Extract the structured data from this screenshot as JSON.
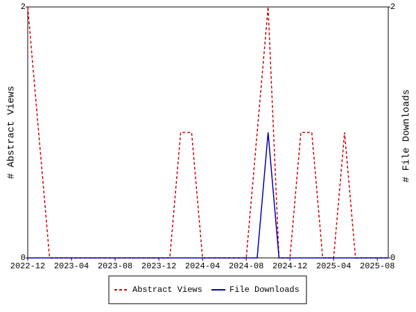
{
  "chart_data": {
    "type": "line",
    "y_label": "# Abstract Views",
    "y2_label": "# File Downloads",
    "categories": [
      "2022-12",
      null,
      null,
      null,
      "2023-04",
      null,
      null,
      null,
      "2023-08",
      null,
      null,
      null,
      "2023-12",
      null,
      null,
      null,
      "2024-04",
      null,
      null,
      null,
      "2024-08",
      null,
      null,
      null,
      "2024-12",
      null,
      null,
      null,
      "2025-04",
      null,
      null,
      null,
      "2025-08",
      null
    ],
    "series": [
      {
        "name": "Abstract Views",
        "color": "#cc0000",
        "dashed": true,
        "values": [
          2,
          1,
          0,
          0,
          0,
          0,
          0,
          0,
          0,
          0,
          0,
          0,
          0,
          0,
          1,
          1,
          0,
          0,
          0,
          0,
          0,
          1,
          2,
          0,
          0,
          1,
          1,
          0,
          0,
          1,
          0,
          0,
          0,
          0
        ]
      },
      {
        "name": "File Downloads",
        "color": "#0000aa",
        "dashed": false,
        "axis": "y2",
        "values": [
          0,
          0,
          0,
          0,
          0,
          0,
          0,
          0,
          0,
          0,
          0,
          0,
          0,
          0,
          0,
          0,
          0,
          0,
          0,
          0,
          0,
          0,
          1,
          0,
          0,
          0,
          0,
          0,
          0,
          0,
          0,
          0,
          0,
          0
        ]
      }
    ],
    "ylim": [
      0,
      2
    ],
    "yticks": [
      0,
      2
    ],
    "y2lim": [
      0,
      2
    ],
    "y2ticks": [
      0,
      2
    ],
    "legend": "bottom"
  }
}
